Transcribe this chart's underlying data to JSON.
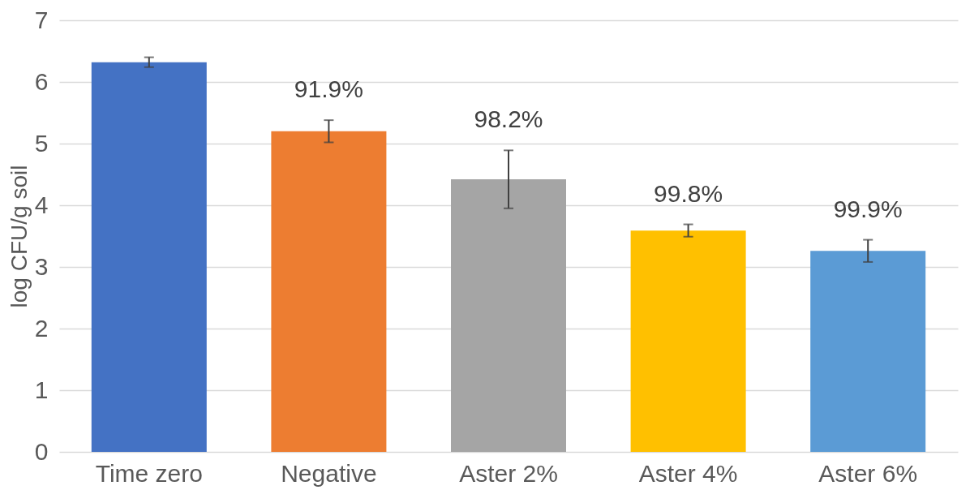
{
  "chart_data": {
    "type": "bar",
    "ylabel": "log CFU/g soil",
    "categories": [
      "Time zero",
      "Negative",
      "Aster 2%",
      "Aster 4%",
      "Aster 6%"
    ],
    "values": [
      6.32,
      5.2,
      4.42,
      3.59,
      3.26
    ],
    "errors": [
      0.08,
      0.18,
      0.47,
      0.1,
      0.18
    ],
    "colors": [
      "#4472c4",
      "#ed7d31",
      "#a5a5a5",
      "#ffc000",
      "#5b9bd5"
    ],
    "annotations": [
      {
        "text": "91.9%",
        "x": "Negative",
        "y": 5.38
      },
      {
        "text": "98.2%",
        "x": "Aster 2%",
        "y": 4.89
      },
      {
        "text": "99.8%",
        "x": "Aster 4%",
        "y": 3.69
      },
      {
        "text": "99.9%",
        "x": "Aster 6%",
        "y": 3.44
      }
    ],
    "ylim": [
      0,
      7
    ],
    "yticks": [
      0,
      1,
      2,
      3,
      4,
      5,
      6,
      7
    ],
    "grid": "y"
  }
}
